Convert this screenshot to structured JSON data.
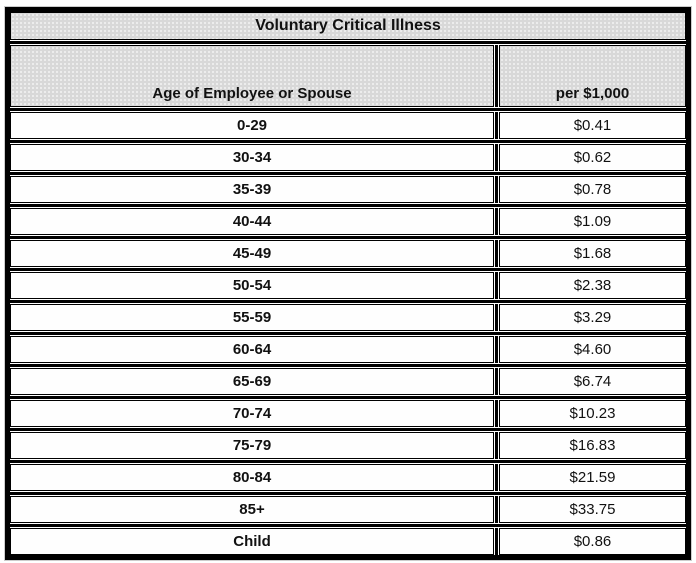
{
  "table": {
    "title": "Voluntary Critical Illness",
    "columns": [
      "Age of Employee or Spouse",
      "per $1,000"
    ],
    "rows": [
      {
        "age": "0-29",
        "rate": "$0.41"
      },
      {
        "age": "30-34",
        "rate": "$0.62"
      },
      {
        "age": "35-39",
        "rate": "$0.78"
      },
      {
        "age": "40-44",
        "rate": "$1.09"
      },
      {
        "age": "45-49",
        "rate": "$1.68"
      },
      {
        "age": "50-54",
        "rate": "$2.38"
      },
      {
        "age": "55-59",
        "rate": "$3.29"
      },
      {
        "age": "60-64",
        "rate": "$4.60"
      },
      {
        "age": "65-69",
        "rate": "$6.74"
      },
      {
        "age": "70-74",
        "rate": "$10.23"
      },
      {
        "age": "75-79",
        "rate": "$16.83"
      },
      {
        "age": "80-84",
        "rate": "$21.59"
      },
      {
        "age": "85+",
        "rate": "$33.75"
      },
      {
        "age": "Child",
        "rate": "$0.86"
      }
    ],
    "colors": {
      "header_fill": "#d8d8d8",
      "border": "#000000",
      "text": "#111111"
    }
  }
}
